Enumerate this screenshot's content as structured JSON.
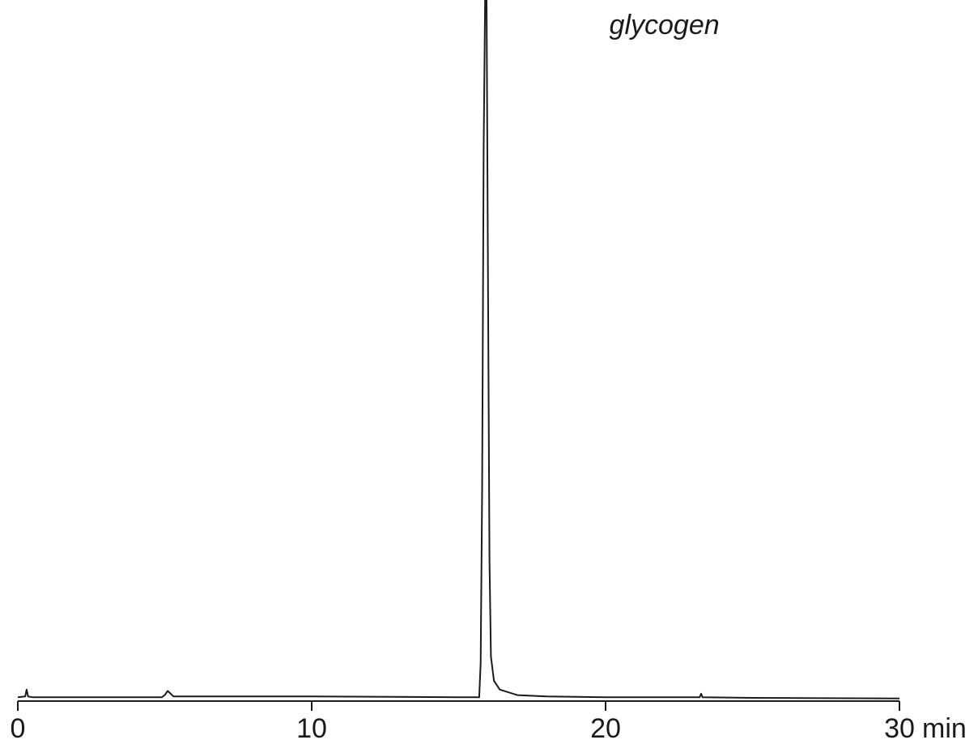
{
  "chart_data": {
    "type": "line",
    "title": "",
    "xlabel": "",
    "x_unit": "min",
    "ylabel": "",
    "xlim": [
      0,
      30
    ],
    "ylim": [
      0,
      1.0
    ],
    "x_ticks": [
      0,
      10,
      20,
      30
    ],
    "x_tick_labels": [
      "0",
      "10",
      "20",
      "30"
    ],
    "grid": false,
    "legend": "none",
    "line_color": "#1a1a1a",
    "annotation": {
      "text": "glycogen",
      "x": 22.0
    },
    "series": [
      {
        "points": [
          [
            0,
            0.001
          ],
          [
            0.25,
            0.002
          ],
          [
            0.3,
            0.012
          ],
          [
            0.35,
            0.002
          ],
          [
            0.5,
            0.001
          ],
          [
            4.9,
            0.001
          ],
          [
            5.0,
            0.004
          ],
          [
            5.1,
            0.01
          ],
          [
            5.2,
            0.006
          ],
          [
            5.3,
            0.002
          ],
          [
            5.5,
            0.002
          ],
          [
            10,
            0.002
          ],
          [
            15.0,
            0.001
          ],
          [
            15.7,
            0.001
          ],
          [
            15.75,
            0.05
          ],
          [
            15.8,
            0.3
          ],
          [
            15.85,
            0.8
          ],
          [
            15.9,
            1.05
          ],
          [
            15.95,
            1.05
          ],
          [
            16.0,
            0.6
          ],
          [
            16.05,
            0.2
          ],
          [
            16.1,
            0.06
          ],
          [
            16.2,
            0.025
          ],
          [
            16.4,
            0.012
          ],
          [
            17.0,
            0.004
          ],
          [
            18.0,
            0.002
          ],
          [
            20.0,
            0.001
          ],
          [
            23.2,
            0.001
          ],
          [
            23.25,
            0.006
          ],
          [
            23.3,
            0.001
          ],
          [
            25.0,
            0.0
          ],
          [
            30.0,
            -0.001
          ]
        ]
      }
    ]
  }
}
